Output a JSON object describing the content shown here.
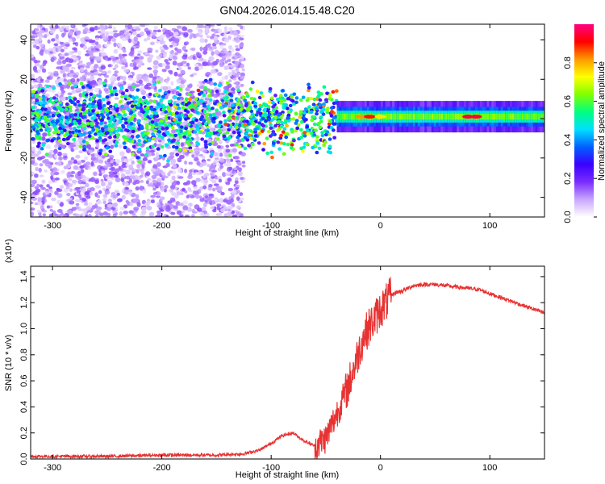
{
  "title": "GN04.2026.014.15.48.C20",
  "chart_data": [
    {
      "type": "heatmap",
      "title": "GN04.2026.014.15.48.C20",
      "xlabel": "Height of straight line (km)",
      "ylabel": "Frequency (Hz)",
      "xlim": [
        -320,
        150
      ],
      "ylim": [
        -50,
        48
      ],
      "xticks": [
        -300,
        -200,
        -100,
        0,
        100
      ],
      "yticks": [
        -40,
        -20,
        0,
        20,
        40
      ],
      "colorbar": {
        "label": "Normalized spectral amplitude",
        "range": [
          0.0,
          1.0
        ],
        "ticks": [
          0.0,
          0.2,
          0.4,
          0.6,
          0.8
        ],
        "tick_labels": [
          "0.0",
          "0.2",
          "0.4",
          "0.6",
          "0.8"
        ],
        "colors": [
          "#ffffff",
          "#c9a6ff",
          "#7a2cff",
          "#3a00ff",
          "#0060ff",
          "#00e0ff",
          "#00ff80",
          "#80ff00",
          "#ffff00",
          "#ff9900",
          "#ff0000",
          "#ff0080"
        ]
      },
      "regions": [
        {
          "name": "diffuse noise",
          "x": [
            -320,
            -125
          ],
          "freq_spread": [
            -50,
            48
          ],
          "amplitude": 0.1
        },
        {
          "name": "band",
          "x": [
            -320,
            -40
          ],
          "freq_center": 0,
          "amplitude": 0.3
        },
        {
          "name": "signal band",
          "x": [
            -40,
            150
          ],
          "freq_center": 1,
          "amplitude": 0.6
        },
        {
          "name": "peak",
          "x": [
            80,
            95
          ],
          "freq_center": 1,
          "amplitude": 0.95
        }
      ]
    },
    {
      "type": "line",
      "xlabel": "Height of straight line (km)",
      "ylabel": "SNR (10 * v/v)",
      "y_multiplier": "(x10⁴)",
      "xlim": [
        -320,
        150
      ],
      "ylim": [
        0,
        1.48
      ],
      "xticks": [
        -300,
        -200,
        -100,
        0,
        100
      ],
      "yticks": [
        0.0,
        0.2,
        0.4,
        0.6,
        0.8,
        1.0,
        1.2,
        1.4
      ],
      "ytick_labels": [
        "0.0",
        "0.2",
        "0.4",
        "0.6",
        "0.8",
        "1.0",
        "1.2",
        "1.4"
      ],
      "color": "#e83232",
      "series": [
        {
          "name": "SNR envelope",
          "x": [
            -320,
            -250,
            -200,
            -150,
            -125,
            -110,
            -100,
            -90,
            -80,
            -70,
            -60,
            -50,
            -40,
            -35,
            -30,
            -25,
            -20,
            -15,
            -10,
            -5,
            0,
            5,
            10,
            15,
            20,
            25,
            30,
            40,
            50,
            60,
            70,
            80,
            90,
            100,
            110,
            120,
            130,
            140,
            150
          ],
          "y": [
            0.02,
            0.02,
            0.03,
            0.03,
            0.04,
            0.07,
            0.12,
            0.18,
            0.2,
            0.14,
            0.1,
            0.16,
            0.35,
            0.45,
            0.55,
            0.68,
            0.82,
            0.95,
            1.02,
            1.08,
            1.15,
            1.2,
            1.26,
            1.28,
            1.29,
            1.31,
            1.33,
            1.34,
            1.34,
            1.33,
            1.32,
            1.31,
            1.3,
            1.27,
            1.24,
            1.21,
            1.18,
            1.15,
            1.12
          ]
        }
      ],
      "spike_regions": [
        {
          "x": [
            -60,
            10
          ],
          "amplitude": 0.3
        }
      ]
    }
  ]
}
